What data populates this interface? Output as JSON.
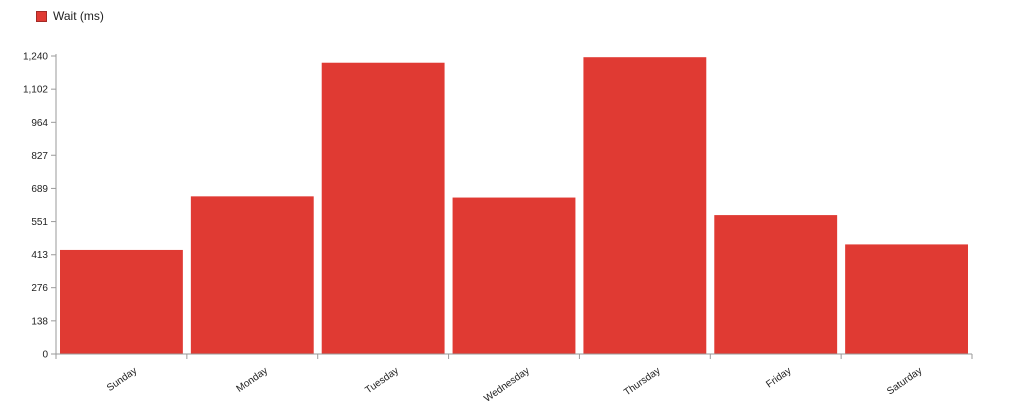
{
  "chart_data": {
    "type": "bar",
    "title": "",
    "xlabel": "",
    "ylabel": "",
    "categories": [
      "Sunday",
      "Monday",
      "Tuesday",
      "Wednesday",
      "Thursday",
      "Friday",
      "Saturday"
    ],
    "series": [
      {
        "name": "Wait (ms)",
        "color": "#e03a33",
        "values": [
          433,
          656,
          1212,
          651,
          1235,
          578,
          456
        ]
      }
    ],
    "ylim": [
      0,
      1240
    ],
    "yticks": [
      0,
      138,
      276,
      413,
      551,
      689,
      827,
      964,
      1102,
      1240
    ],
    "ytick_labels": [
      "0",
      "138",
      "276",
      "413",
      "551",
      "689",
      "827",
      "964",
      "1,102",
      "1,240"
    ],
    "legend_position": "top-left",
    "grid": false
  }
}
